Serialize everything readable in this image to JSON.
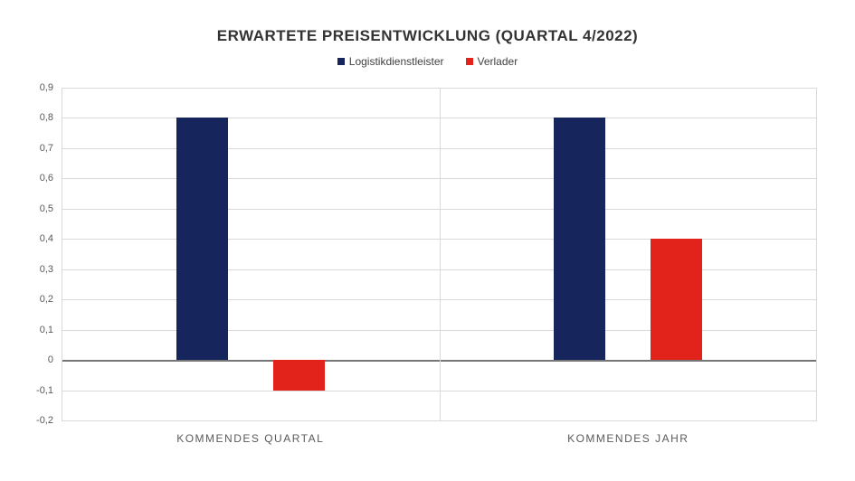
{
  "chart_data": {
    "type": "bar",
    "title": "ERWARTETE PREISENTWICKLUNG (QUARTAL 4/2022)",
    "categories": [
      "KOMMENDES QUARTAL",
      "KOMMENDES JAHR"
    ],
    "series": [
      {
        "name": "Logistikdienstleister",
        "color": "#16265C",
        "values": [
          0.8,
          0.8
        ]
      },
      {
        "name": "Verlader",
        "color": "#E2231B",
        "values": [
          -0.1,
          0.4
        ]
      }
    ],
    "ylim": [
      -0.2,
      0.9
    ],
    "y_tick_step": 0.1,
    "y_tick_labels": [
      "0,9",
      "0,8",
      "0,7",
      "0,6",
      "0,5",
      "0,4",
      "0,3",
      "0,2",
      "0,1",
      "0",
      "-0,1",
      "-0,2"
    ],
    "grid": "horizontal-light-gray",
    "legend_position": "top-center",
    "colors": {
      "gridline": "#d9d9d9",
      "zero_line": "#767676",
      "axis_text": "#595959",
      "title_text": "#333333",
      "legend_text": "#404040",
      "background": "#ffffff"
    }
  }
}
